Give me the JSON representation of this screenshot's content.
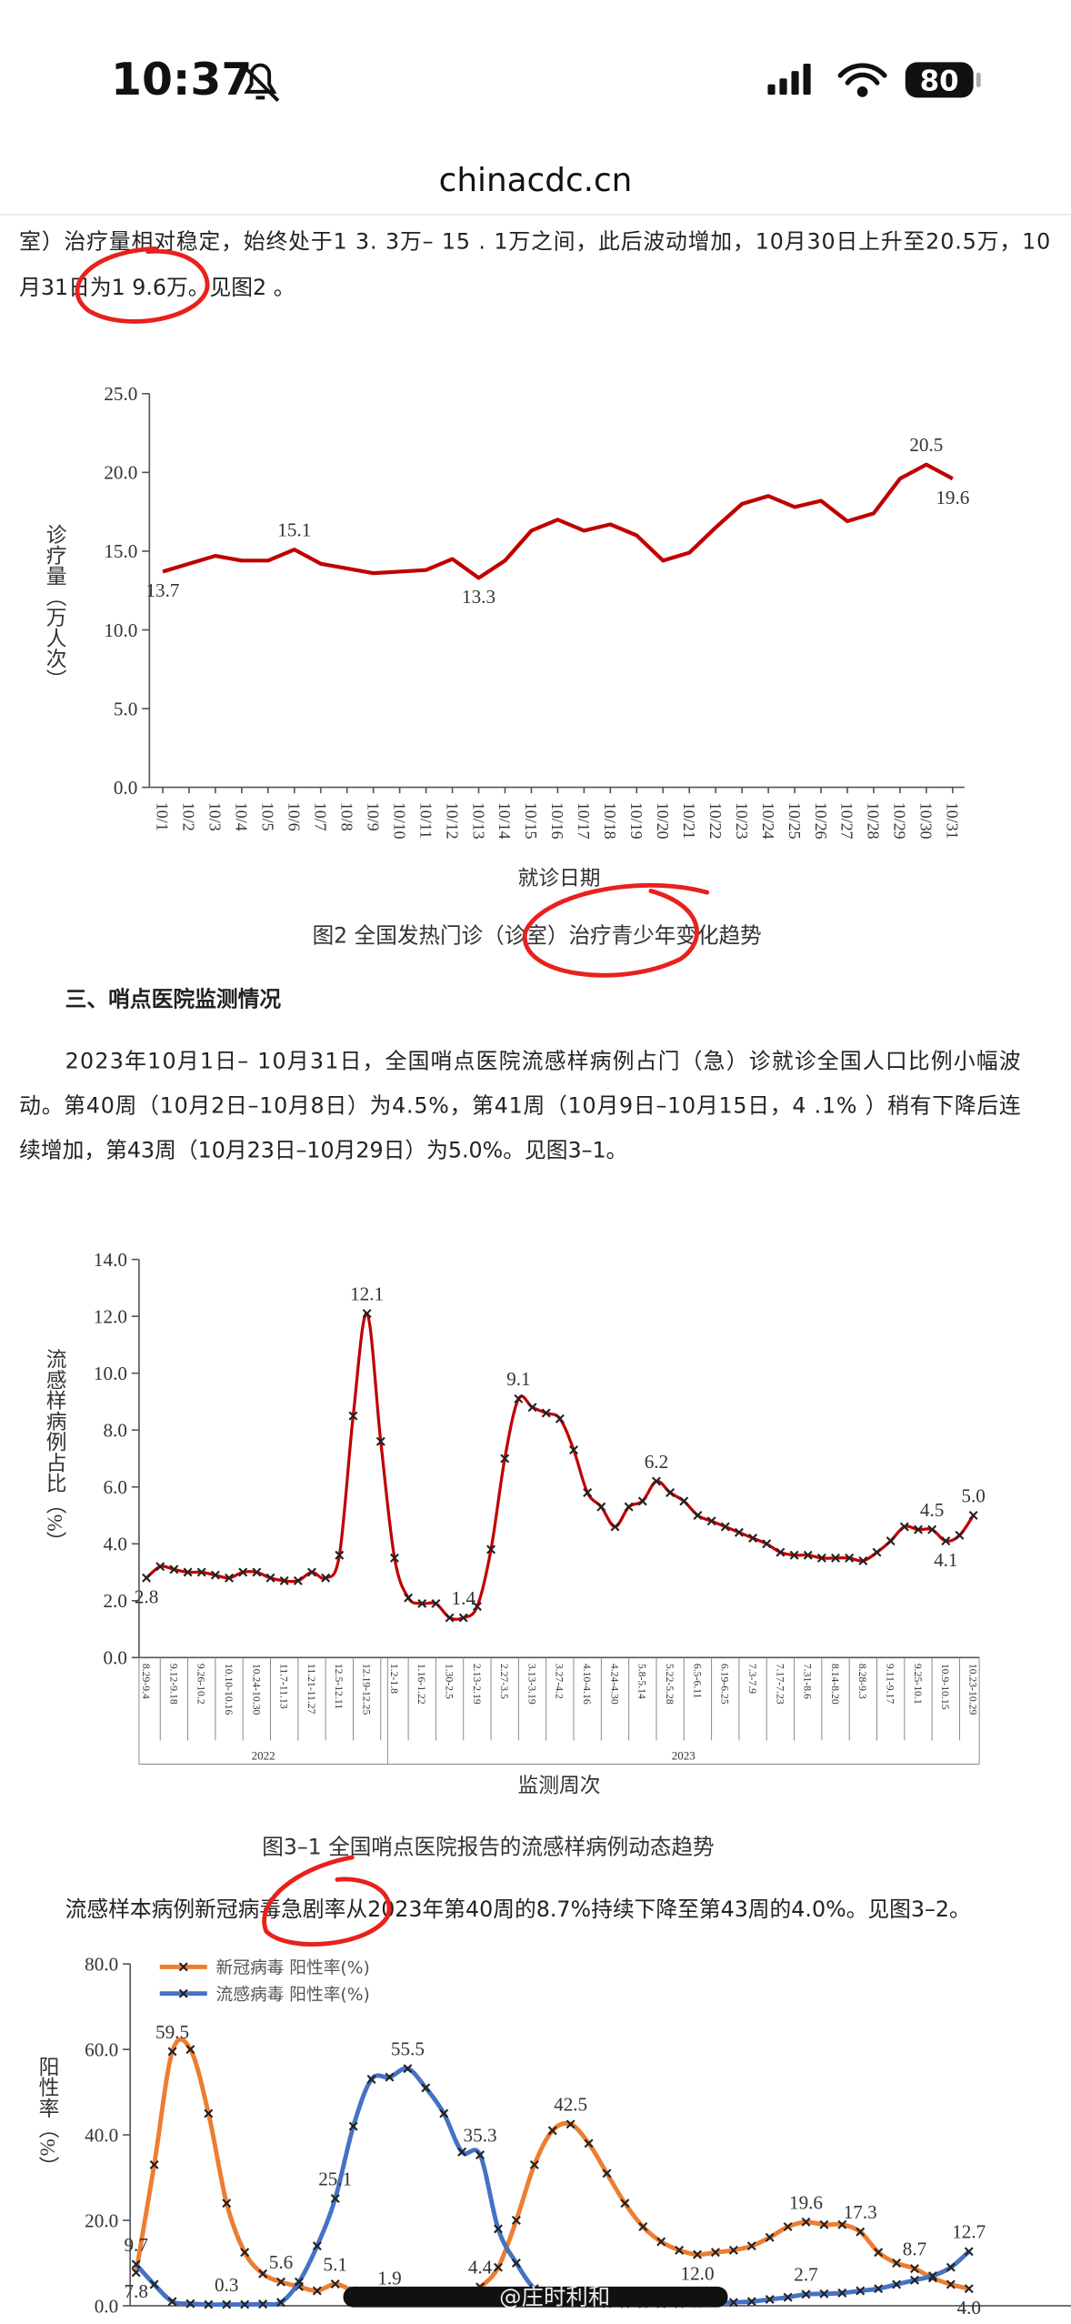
{
  "status_bar": {
    "time": "10:37",
    "battery": "80"
  },
  "url": "chinacdc.cn",
  "paragraphs": [
    {
      "lines": [
        "室）治疗量相对稳定，始终处于1 3. 3万– 15 . 1万之间，此后波动增加，10月30日上升至20.5万，10",
        "月31日为1 9.6万。见图2 。"
      ]
    },
    {
      "lines": [
        "2023年10月1日– 10月31日，全国哨点医院流感样病例占门（急）诊就诊全国人口比例小幅波",
        "动。第40周（10月2日–10月8日）为4.5%，第41周（10月9日–10月15日，4 .1% ）稍有下降后连",
        "续增加，第43周（10月23日–10月29日）为5.0%。见图3–1。"
      ]
    },
    {
      "lines": [
        "流感样本病例新冠病毒急剧率从2023年第40周的8.7%持续下降至第43周的4.0%。见图3–2。"
      ]
    }
  ],
  "section_heading": "三、哨点医院监测情况",
  "watermark": "@庄时利和",
  "chart_data": [
    {
      "type": "line",
      "caption": "图2 全国发热门诊（诊室）治疗青少年变化趋势",
      "x_label": "就诊日期",
      "y_label": "诊疗量（万人次）",
      "categories": [
        "10/1",
        "10/2",
        "10/3",
        "10/4",
        "10/5",
        "10/6",
        "10/7",
        "10/8",
        "10/9",
        "10/10",
        "10/11",
        "10/12",
        "10/13",
        "10/14",
        "10/15",
        "10/16",
        "10/17",
        "10/18",
        "10/19",
        "10/20",
        "10/21",
        "10/22",
        "10/23",
        "10/24",
        "10/25",
        "10/26",
        "10/27",
        "10/28",
        "10/29",
        "10/30",
        "10/31"
      ],
      "values": [
        13.7,
        14.2,
        14.7,
        14.4,
        14.4,
        15.1,
        14.2,
        13.9,
        13.6,
        13.7,
        13.8,
        14.5,
        13.3,
        14.4,
        16.3,
        17.0,
        16.3,
        16.7,
        16.0,
        14.4,
        14.9,
        16.5,
        18.0,
        18.5,
        17.8,
        18.2,
        16.9,
        17.4,
        19.6,
        20.5,
        19.6
      ],
      "value_labels": [
        "13.7",
        null,
        null,
        null,
        null,
        "15.1",
        null,
        null,
        null,
        null,
        null,
        null,
        "13.3",
        null,
        null,
        null,
        null,
        null,
        null,
        null,
        null,
        null,
        null,
        null,
        null,
        null,
        null,
        null,
        null,
        "20.5",
        "19.6"
      ],
      "color": "#c00000",
      "ylim": [
        0,
        25
      ],
      "yticks": [
        {
          "value": 0,
          "label": "0.0"
        },
        {
          "value": 5,
          "label": "5.0"
        },
        {
          "value": 10,
          "label": "10.0"
        },
        {
          "value": 15,
          "label": "15.0"
        },
        {
          "value": 20,
          "label": "20.0"
        },
        {
          "value": 25,
          "label": "25.0"
        }
      ]
    },
    {
      "type": "line",
      "caption": "图3–1 全国哨点医院报告的流感样病例动态趋势",
      "x_label": "监测周次",
      "y_label": "流感样病例占比（%）",
      "years": [
        "2022",
        "2023"
      ],
      "categories": [
        "8.29-9.4",
        null,
        "9.12-9.18",
        null,
        "9.26-10.2",
        null,
        "10.10-10.16",
        null,
        "10.24-10.30",
        null,
        "11.7-11.13",
        null,
        "11.21-11.27",
        null,
        "12.5-12.11",
        null,
        "12.19-12.25",
        null,
        "1.2-1.8",
        null,
        "1.16-1.22",
        null,
        "1.30-2.5",
        null,
        "2.13-2.19",
        null,
        "2.27-3.5",
        null,
        "3.13-3.19",
        null,
        "3.27-4.2",
        null,
        "4.10-4.16",
        null,
        "4.24-4.30",
        null,
        "5.8-5.14",
        null,
        "5.22-5.28",
        null,
        "6.5-6.11",
        null,
        "6.19-6.25",
        null,
        "7.3-7.9",
        null,
        "7.17-7.23",
        null,
        "7.31-8.6",
        null,
        "8.14-8.20",
        null,
        "8.28-9.3",
        null,
        "9.11-9.17",
        null,
        "9.25-10.1",
        null,
        "10.9-10.15",
        null,
        "10.23-10.29"
      ],
      "values": [
        2.8,
        3.2,
        3.1,
        3.0,
        3.0,
        2.9,
        2.8,
        3.0,
        3.0,
        2.8,
        2.7,
        2.7,
        3.0,
        2.8,
        3.6,
        8.5,
        12.1,
        7.6,
        3.5,
        2.1,
        1.9,
        1.9,
        1.4,
        1.4,
        1.8,
        3.8,
        7.0,
        9.1,
        8.8,
        8.6,
        8.4,
        7.3,
        5.8,
        5.3,
        4.6,
        5.3,
        5.5,
        6.2,
        5.8,
        5.5,
        5.0,
        4.8,
        4.6,
        4.4,
        4.2,
        4.0,
        3.7,
        3.6,
        3.6,
        3.5,
        3.5,
        3.5,
        3.4,
        3.7,
        4.1,
        4.6,
        4.5,
        4.5,
        4.1,
        4.3,
        5.0
      ],
      "value_labels": [
        "2.8",
        null,
        null,
        null,
        null,
        null,
        null,
        null,
        null,
        null,
        null,
        null,
        null,
        null,
        null,
        null,
        "12.1",
        null,
        null,
        null,
        null,
        null,
        null,
        "1.4",
        null,
        null,
        null,
        "9.1",
        null,
        null,
        null,
        null,
        null,
        null,
        null,
        null,
        null,
        "6.2",
        null,
        null,
        null,
        null,
        null,
        null,
        null,
        null,
        null,
        null,
        null,
        null,
        null,
        null,
        null,
        null,
        null,
        null,
        null,
        "4.5",
        "4.1",
        null,
        "5.0"
      ],
      "color": "#c00000",
      "ylim": [
        0,
        14
      ],
      "yticks": [
        {
          "value": 0,
          "label": "0.0"
        },
        {
          "value": 2,
          "label": "2.0"
        },
        {
          "value": 4,
          "label": "4.0"
        },
        {
          "value": 6,
          "label": "6.0"
        },
        {
          "value": 8,
          "label": "8.0"
        },
        {
          "value": 10,
          "label": "10.0"
        },
        {
          "value": 12,
          "label": "12.0"
        },
        {
          "value": 14,
          "label": "14.0"
        }
      ]
    },
    {
      "type": "line",
      "y_label": "阳性率（%）",
      "legend": "top-left",
      "categories": [
        null,
        null,
        null,
        null,
        null,
        null,
        null,
        null,
        null,
        null,
        null,
        null,
        null,
        null,
        null,
        null,
        null,
        null,
        null,
        null,
        null,
        null,
        null,
        null,
        null,
        null,
        null,
        null,
        null,
        null,
        null,
        null,
        null,
        null,
        null,
        null,
        null,
        null,
        null,
        null,
        null,
        null,
        null,
        null,
        null,
        null,
        null
      ],
      "series": [
        {
          "name": "新冠病毒 阳性率(%)",
          "color": "#ed7d31",
          "values": [
            7.8,
            33,
            59.5,
            60,
            45,
            24,
            12.5,
            7.5,
            5.6,
            4.5,
            3.5,
            5.1,
            3.5,
            2.5,
            1.9,
            1.5,
            1.2,
            1.5,
            2.5,
            4.4,
            9,
            20,
            33,
            41,
            42.5,
            38,
            31,
            24,
            18.5,
            15,
            13,
            12.0,
            12.5,
            13,
            14,
            16,
            18.5,
            19.6,
            19,
            19,
            17.3,
            12.5,
            10,
            8.7,
            6.5,
            5,
            4.0
          ],
          "value_labels": [
            "7.8",
            null,
            "59.5",
            null,
            null,
            null,
            null,
            null,
            "5.6",
            null,
            null,
            "5.1",
            null,
            null,
            "1.9",
            null,
            null,
            null,
            null,
            "4.4",
            null,
            null,
            null,
            null,
            "42.5",
            null,
            null,
            null,
            null,
            null,
            null,
            "12.0",
            null,
            null,
            null,
            null,
            null,
            "19.6",
            null,
            null,
            "17.3",
            null,
            null,
            "8.7",
            null,
            null,
            "4.0"
          ]
        },
        {
          "name": "流感病毒 阳性率(%)",
          "color": "#4472c4",
          "values": [
            9.7,
            5,
            1,
            0.5,
            0.3,
            0.3,
            0.3,
            0.4,
            0.8,
            5.6,
            14,
            25.1,
            42,
            53,
            53.5,
            55.5,
            51,
            45,
            36,
            35.3,
            18,
            10,
            4,
            1.8,
            1.0,
            0.6,
            0.5,
            0.5,
            0.5,
            0.5,
            0.5,
            0.6,
            0.7,
            0.8,
            1,
            1.5,
            2,
            2.7,
            2.8,
            3,
            3.5,
            4,
            5,
            6,
            7,
            9,
            12.7
          ],
          "value_labels": [
            "9.7",
            null,
            null,
            null,
            null,
            "0.3",
            null,
            null,
            null,
            null,
            null,
            "25.1",
            null,
            null,
            null,
            "55.5",
            null,
            null,
            null,
            "35.3",
            null,
            null,
            null,
            null,
            null,
            null,
            null,
            null,
            null,
            null,
            null,
            null,
            null,
            null,
            null,
            null,
            null,
            "2.7",
            null,
            null,
            null,
            null,
            null,
            null,
            null,
            null,
            "12.7"
          ]
        }
      ],
      "ylim": [
        0,
        80
      ],
      "yticks": [
        {
          "value": 0,
          "label": "0.0"
        },
        {
          "value": 20,
          "label": "20.0"
        },
        {
          "value": 40,
          "label": "40.0"
        },
        {
          "value": 60,
          "label": "60.0"
        },
        {
          "value": 80,
          "label": "80.0"
        }
      ]
    }
  ]
}
